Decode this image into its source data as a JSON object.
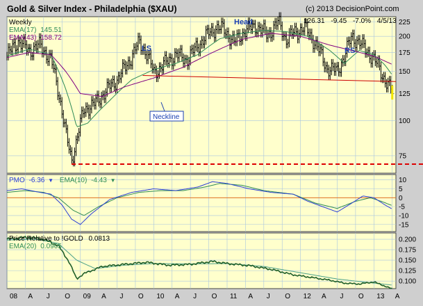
{
  "colors": {
    "background": "#ffffcc",
    "frame": "#cfcfcf",
    "grid": "#a8c4e0",
    "price": "#000000",
    "ema_fast": "#2e8b57",
    "ema_slow": "#800080",
    "neckline": "#cc0000",
    "support": "#dd0000",
    "highlight": "#f2e600",
    "pmo": "#2c3fd6",
    "pmo_signal": "#2e8b57",
    "zero_line": "#e07020",
    "relative": "#1f5e2a",
    "relative_ema": "#4aa08a",
    "annotation": "#1a3fb0"
  },
  "header": {
    "title": "Gold & Silver Index - Philadelphia ($XAU)",
    "copyright": "(c) 2013 DecisionPoint.com",
    "period": "Weekly",
    "last_close": "126.31",
    "change": "-9.45",
    "change_pct": "-7.0%",
    "date": "4/5/13"
  },
  "legend": {
    "ema17_label": "EMA(17)",
    "ema17_value": "145.51",
    "ema43_label": "EMA(43)",
    "ema43_value": "158.72",
    "pmo_label": "PMO",
    "pmo_value": "-6.36",
    "pmo_arrow": "▼",
    "pmo_ema_label": "EMA(10)",
    "pmo_ema_value": "-4.43",
    "pmo_ema_arrow": "▼",
    "rel_label": "Price Relative to !GOLD",
    "rel_value": "0.0813",
    "rel_ema_label": "EMA(20)",
    "rel_ema_value": "0.0905"
  },
  "annotations": {
    "ls": "LS",
    "head": "Head",
    "rs": "RS",
    "neckline": "Neckline"
  },
  "chart_data": [
    {
      "type": "ohlc",
      "panel": "price",
      "scale": "log",
      "ylim": [
        65,
        235
      ],
      "yticks": [
        75,
        100,
        125,
        150,
        175,
        200,
        225
      ],
      "x_range": [
        2008.0,
        2013.3
      ],
      "series": [
        {
          "name": "$XAU",
          "x": [
            2008.0,
            2008.15,
            2008.3,
            2008.45,
            2008.6,
            2008.72,
            2008.8,
            2008.88,
            2008.95,
            2009.05,
            2009.2,
            2009.35,
            2009.5,
            2009.65,
            2009.8,
            2009.9,
            2010.0,
            2010.15,
            2010.3,
            2010.45,
            2010.6,
            2010.75,
            2010.85,
            2010.95,
            2011.1,
            2011.25,
            2011.4,
            2011.55,
            2011.7,
            2011.8,
            2011.9,
            2012.05,
            2012.2,
            2012.35,
            2012.5,
            2012.6,
            2012.7,
            2012.8,
            2012.95,
            2013.05,
            2013.15,
            2013.25
          ],
          "values": [
            170,
            192,
            178,
            186,
            165,
            120,
            90,
            72,
            85,
            110,
            115,
            128,
            140,
            160,
            190,
            175,
            148,
            160,
            172,
            165,
            185,
            205,
            215,
            212,
            190,
            210,
            218,
            202,
            225,
            195,
            205,
            215,
            190,
            155,
            150,
            170,
            200,
            190,
            172,
            158,
            140,
            126
          ]
        },
        {
          "name": "EMA(17)",
          "x": [
            2008.0,
            2008.3,
            2008.6,
            2008.8,
            2008.95,
            2009.1,
            2009.4,
            2009.7,
            2010.0,
            2010.3,
            2010.6,
            2010.9,
            2011.2,
            2011.5,
            2011.8,
            2012.1,
            2012.4,
            2012.6,
            2012.8,
            2013.0,
            2013.15,
            2013.25
          ],
          "values": [
            170,
            180,
            172,
            130,
            95,
            98,
            118,
            140,
            152,
            160,
            172,
            196,
            205,
            210,
            208,
            200,
            178,
            160,
            178,
            172,
            158,
            145.51
          ]
        },
        {
          "name": "EMA(43)",
          "x": [
            2008.0,
            2008.3,
            2008.6,
            2008.8,
            2009.0,
            2009.3,
            2009.6,
            2010.0,
            2010.4,
            2010.8,
            2011.2,
            2011.6,
            2012.0,
            2012.4,
            2012.7,
            2013.0,
            2013.25
          ],
          "values": [
            168,
            175,
            172,
            150,
            125,
            122,
            132,
            142,
            155,
            175,
            195,
            205,
            200,
            186,
            178,
            170,
            158.72
          ]
        }
      ],
      "neckline": {
        "x": [
          2009.85,
          2013.3
        ],
        "values": [
          145,
          138
        ]
      },
      "support": {
        "value": 70
      }
    },
    {
      "type": "line",
      "panel": "pmo",
      "ylim": [
        -19,
        13
      ],
      "yticks": [
        10,
        5,
        0,
        -5,
        -10,
        -15
      ],
      "series": [
        {
          "name": "PMO",
          "x": [
            2008.0,
            2008.2,
            2008.45,
            2008.6,
            2008.75,
            2008.88,
            2009.0,
            2009.15,
            2009.4,
            2009.7,
            2010.0,
            2010.3,
            2010.6,
            2010.8,
            2011.0,
            2011.3,
            2011.6,
            2011.9,
            2012.1,
            2012.3,
            2012.5,
            2012.7,
            2012.85,
            2013.0,
            2013.15,
            2013.25
          ],
          "values": [
            4,
            5,
            3,
            2,
            -4,
            -12,
            -15,
            -9,
            -1,
            3,
            5,
            4,
            6,
            9,
            8,
            5,
            3,
            2,
            -2,
            -5,
            -8,
            -3,
            1,
            0,
            -4,
            -6.36
          ]
        },
        {
          "name": "EMA(10)",
          "x": [
            2008.0,
            2008.25,
            2008.5,
            2008.7,
            2008.9,
            2009.05,
            2009.25,
            2009.5,
            2009.8,
            2010.1,
            2010.4,
            2010.7,
            2010.9,
            2011.2,
            2011.5,
            2011.9,
            2012.2,
            2012.5,
            2012.75,
            2012.95,
            2013.1,
            2013.25
          ],
          "values": [
            3,
            4,
            3,
            0,
            -7,
            -10,
            -5,
            0,
            3,
            4,
            4,
            6,
            8,
            7,
            4,
            2,
            -3,
            -6,
            -2,
            0,
            -2,
            -4.43
          ]
        }
      ]
    },
    {
      "type": "line",
      "panel": "relative",
      "ylim": [
        0.082,
        0.215
      ],
      "yticks": [
        0.2,
        0.175,
        0.15,
        0.125,
        0.1
      ],
      "series": [
        {
          "name": "Price Relative to !GOLD",
          "x": [
            2008.0,
            2008.3,
            2008.5,
            2008.7,
            2008.85,
            2008.95,
            2009.05,
            2009.3,
            2009.6,
            2009.9,
            2010.2,
            2010.5,
            2010.8,
            2011.0,
            2011.3,
            2011.6,
            2011.9,
            2012.1,
            2012.4,
            2012.6,
            2012.8,
            2013.0,
            2013.15,
            2013.25
          ],
          "values": [
            0.2,
            0.205,
            0.2,
            0.185,
            0.145,
            0.105,
            0.118,
            0.135,
            0.14,
            0.145,
            0.138,
            0.14,
            0.147,
            0.142,
            0.137,
            0.128,
            0.115,
            0.11,
            0.102,
            0.095,
            0.093,
            0.098,
            0.088,
            0.0813
          ]
        },
        {
          "name": "EMA(20)",
          "x": [
            2008.0,
            2008.4,
            2008.7,
            2008.95,
            2009.2,
            2009.6,
            2010.0,
            2010.5,
            2011.0,
            2011.5,
            2012.0,
            2012.5,
            2012.9,
            2013.25
          ],
          "values": [
            0.198,
            0.2,
            0.19,
            0.15,
            0.13,
            0.138,
            0.142,
            0.141,
            0.142,
            0.135,
            0.12,
            0.105,
            0.097,
            0.0905
          ]
        }
      ]
    }
  ],
  "x_axis": {
    "ticks": [
      {
        "label": "08",
        "x": 2008.0
      },
      {
        "label": "A",
        "x": 2008.25
      },
      {
        "label": "J",
        "x": 2008.5
      },
      {
        "label": "O",
        "x": 2008.75
      },
      {
        "label": "09",
        "x": 2009.0
      },
      {
        "label": "A",
        "x": 2009.25
      },
      {
        "label": "J",
        "x": 2009.5
      },
      {
        "label": "O",
        "x": 2009.75
      },
      {
        "label": "10",
        "x": 2010.0
      },
      {
        "label": "A",
        "x": 2010.25
      },
      {
        "label": "J",
        "x": 2010.5
      },
      {
        "label": "O",
        "x": 2010.75
      },
      {
        "label": "11",
        "x": 2011.0
      },
      {
        "label": "A",
        "x": 2011.25
      },
      {
        "label": "J",
        "x": 2011.5
      },
      {
        "label": "O",
        "x": 2011.75
      },
      {
        "label": "12",
        "x": 2012.0
      },
      {
        "label": "A",
        "x": 2012.25
      },
      {
        "label": "J",
        "x": 2012.5
      },
      {
        "label": "O",
        "x": 2012.75
      },
      {
        "label": "13",
        "x": 2013.0
      },
      {
        "label": "A",
        "x": 2013.25
      }
    ]
  }
}
